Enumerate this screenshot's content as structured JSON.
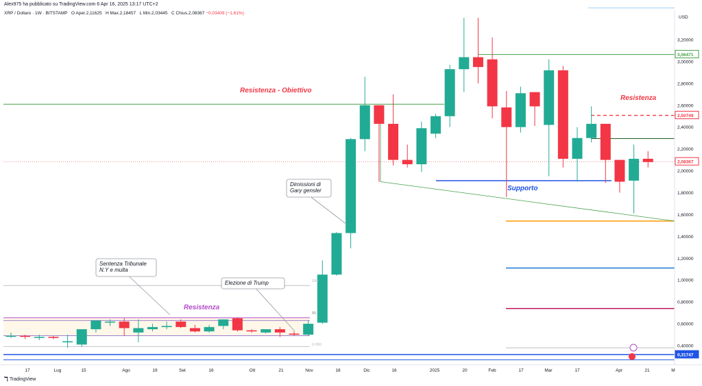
{
  "header": {
    "published_by": "Alex975 ha pubblicato su TradingView.com 6 Apr 16, 2025 13:17 UTC+2"
  },
  "symbol_info": {
    "symbol": "XRP / Dollaro · 1W · BITSTAMP",
    "open_label": "O",
    "open_value": "Aper.2,11625",
    "high_label": "H",
    "high_value": "Max.2,18457",
    "low_label": "L",
    "low_value": "Min.2,03445",
    "close_label": "C",
    "close_value": "Chius.2,08367",
    "change": "−0,03409 (−1,61%)"
  },
  "price_axis": {
    "currency": "USD",
    "ticks": [
      "3,20000",
      "3,00000",
      "2,80000",
      "2,60000",
      "2,40000",
      "2,20000",
      "2,00000",
      "1,80000",
      "1,60000",
      "1,40000",
      "1,20000",
      "1,00000",
      "0,80000",
      "0,60000",
      "0,40000"
    ],
    "tick_values": [
      3.2,
      3.0,
      2.8,
      2.6,
      2.4,
      2.2,
      2.0,
      1.8,
      1.6,
      1.4,
      1.2,
      1.0,
      0.8,
      0.6,
      0.4
    ],
    "badges": [
      {
        "text": "3,06471",
        "value": 3.06471,
        "color": "#43a047"
      },
      {
        "text": "2,50749",
        "value": 2.50749,
        "color": "#f23645"
      },
      {
        "text": "2,08367",
        "value": 2.08367,
        "color": "#f23645"
      },
      {
        "text": "0,31747",
        "value": 0.31747,
        "color": "#1e53e5"
      }
    ]
  },
  "time_axis": {
    "labels": [
      "17",
      "Lug",
      "15",
      "Ago",
      "19",
      "Set",
      "16",
      "Ott",
      "21",
      "Nov",
      "18",
      "Dic",
      "16",
      "2025",
      "20",
      "Feb",
      "17",
      "Mar",
      "17",
      "Apr",
      "21",
      "M"
    ]
  },
  "annotations": {
    "resistenza_obiettivo": "Resistenza - Obiettivo",
    "resistenza_right": "Resistenza",
    "resistenza_left": "Resistenza",
    "supporto": "Supporto",
    "gary_gensler": "Dimissioni di Gary gensler",
    "sentenza": "Sentenza Tribunale N.Y e multa",
    "elezione": "Elezione di Trump",
    "fib_100": "100",
    "fib_50": "50",
    "fib_0": "0.000"
  },
  "colors": {
    "up": "#22ab94",
    "down": "#f23645",
    "resistance_green": "#43a047",
    "support_blue": "#1e53e5",
    "orange": "#ff9800",
    "magenta": "#e91e63",
    "purple": "#b04ac8",
    "annotation_red": "#f23645"
  },
  "chart_data": {
    "type": "candlestick",
    "title": "XRP / Dollaro · 1W · BITSTAMP",
    "timeframe": "1W",
    "x_labels": [
      "17",
      "Lug",
      "15",
      "Ago",
      "19",
      "Set",
      "16",
      "Ott",
      "21",
      "Nov",
      "18",
      "Dic",
      "16",
      "2025",
      "20",
      "Feb",
      "17",
      "Mar",
      "17",
      "Apr",
      "21",
      "M"
    ],
    "candles": [
      {
        "o": 0.49,
        "h": 0.52,
        "l": 0.47,
        "c": 0.49
      },
      {
        "o": 0.49,
        "h": 0.5,
        "l": 0.46,
        "c": 0.48
      },
      {
        "o": 0.48,
        "h": 0.5,
        "l": 0.45,
        "c": 0.48
      },
      {
        "o": 0.48,
        "h": 0.49,
        "l": 0.46,
        "c": 0.47
      },
      {
        "o": 0.43,
        "h": 0.5,
        "l": 0.38,
        "c": 0.44
      },
      {
        "o": 0.41,
        "h": 0.54,
        "l": 0.39,
        "c": 0.55
      },
      {
        "o": 0.55,
        "h": 0.62,
        "l": 0.52,
        "c": 0.63
      },
      {
        "o": 0.62,
        "h": 0.64,
        "l": 0.58,
        "c": 0.62
      },
      {
        "o": 0.62,
        "h": 0.65,
        "l": 0.49,
        "c": 0.56
      },
      {
        "o": 0.52,
        "h": 0.64,
        "l": 0.43,
        "c": 0.56
      },
      {
        "o": 0.55,
        "h": 0.6,
        "l": 0.53,
        "c": 0.57
      },
      {
        "o": 0.57,
        "h": 0.62,
        "l": 0.55,
        "c": 0.58
      },
      {
        "o": 0.62,
        "h": 0.64,
        "l": 0.56,
        "c": 0.57
      },
      {
        "o": 0.56,
        "h": 0.59,
        "l": 0.52,
        "c": 0.53
      },
      {
        "o": 0.53,
        "h": 0.59,
        "l": 0.52,
        "c": 0.57
      },
      {
        "o": 0.58,
        "h": 0.64,
        "l": 0.55,
        "c": 0.64
      },
      {
        "o": 0.65,
        "h": 0.66,
        "l": 0.53,
        "c": 0.54
      },
      {
        "o": 0.54,
        "h": 0.55,
        "l": 0.52,
        "c": 0.53
      },
      {
        "o": 0.52,
        "h": 0.55,
        "l": 0.51,
        "c": 0.55
      },
      {
        "o": 0.55,
        "h": 0.57,
        "l": 0.48,
        "c": 0.52
      },
      {
        "o": 0.51,
        "h": 0.53,
        "l": 0.49,
        "c": 0.5
      },
      {
        "o": 0.5,
        "h": 0.63,
        "l": 0.49,
        "c": 0.6
      },
      {
        "o": 0.61,
        "h": 1.18,
        "l": 0.6,
        "c": 1.05
      },
      {
        "o": 1.05,
        "h": 1.44,
        "l": 1.04,
        "c": 1.43
      },
      {
        "o": 1.43,
        "h": 2.3,
        "l": 1.29,
        "c": 2.29
      },
      {
        "o": 2.29,
        "h": 2.86,
        "l": 2.18,
        "c": 2.6
      },
      {
        "o": 2.6,
        "h": 2.6,
        "l": 1.9,
        "c": 2.43
      },
      {
        "o": 2.43,
        "h": 2.7,
        "l": 2.05,
        "c": 2.1
      },
      {
        "o": 2.1,
        "h": 2.24,
        "l": 2.03,
        "c": 2.06
      },
      {
        "o": 2.06,
        "h": 2.45,
        "l": 1.99,
        "c": 2.39
      },
      {
        "o": 2.34,
        "h": 2.52,
        "l": 2.3,
        "c": 2.5
      },
      {
        "o": 2.5,
        "h": 2.97,
        "l": 2.4,
        "c": 2.93
      },
      {
        "o": 2.93,
        "h": 3.4,
        "l": 2.72,
        "c": 3.04
      },
      {
        "o": 3.04,
        "h": 3.4,
        "l": 2.8,
        "c": 2.95
      },
      {
        "o": 3.02,
        "h": 3.22,
        "l": 2.48,
        "c": 2.59
      },
      {
        "o": 2.58,
        "h": 2.73,
        "l": 1.76,
        "c": 2.4
      },
      {
        "o": 2.4,
        "h": 2.77,
        "l": 2.35,
        "c": 2.71
      },
      {
        "o": 2.72,
        "h": 2.72,
        "l": 2.41,
        "c": 2.59
      },
      {
        "o": 2.42,
        "h": 3.02,
        "l": 1.95,
        "c": 2.92
      },
      {
        "o": 2.92,
        "h": 2.96,
        "l": 2.03,
        "c": 2.11
      },
      {
        "o": 2.11,
        "h": 2.4,
        "l": 1.9,
        "c": 2.3
      },
      {
        "o": 2.3,
        "h": 2.59,
        "l": 2.26,
        "c": 2.43
      },
      {
        "o": 2.43,
        "h": 2.43,
        "l": 1.89,
        "c": 2.1
      },
      {
        "o": 2.1,
        "h": 2.1,
        "l": 1.8,
        "c": 1.9
      },
      {
        "o": 1.91,
        "h": 2.24,
        "l": 1.61,
        "c": 2.11
      },
      {
        "o": 2.11,
        "h": 2.18,
        "l": 2.03,
        "c": 2.08
      }
    ],
    "levels": [
      {
        "name": "Resistenza - Obiettivo",
        "value": 2.61
      },
      {
        "name": "3,06471",
        "value": 3.06471
      },
      {
        "name": "2,50749",
        "value": 2.50749
      },
      {
        "name": "Supporto",
        "value": 1.91
      },
      {
        "name": "orange",
        "value": 1.54
      },
      {
        "name": "blue",
        "value": 1.11
      },
      {
        "name": "magenta",
        "value": 0.74
      },
      {
        "name": "0,31747",
        "value": 0.31747
      }
    ],
    "ylim": [
      0.22,
      3.45
    ]
  }
}
